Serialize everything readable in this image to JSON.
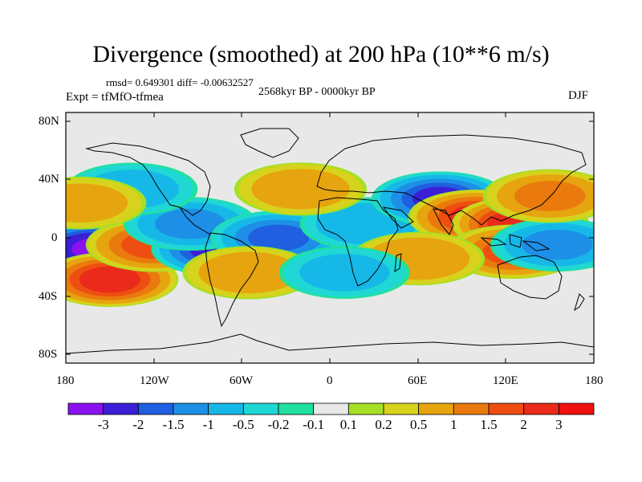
{
  "title": "Divergence (smoothed) at 200 hPa (10**6 m/s)",
  "stats_line": "rmsd= 0.649301 diff= -0.00632527",
  "experiment": "Expt = tfMfO-tfmea",
  "period": "2568kyr BP - 0000kyr BP",
  "season": "DJF",
  "lat_ticks": [
    "80N",
    "40N",
    "0",
    "40S",
    "80S"
  ],
  "lon_ticks": [
    "180",
    "120W",
    "60W",
    "0",
    "60E",
    "120E",
    "180"
  ],
  "colorbar": {
    "labels": [
      "-3",
      "-2",
      "-1.5",
      "-1",
      "-0.5",
      "-0.2",
      "-0.1",
      "0.1",
      "0.2",
      "0.5",
      "1",
      "1.5",
      "2",
      "3"
    ],
    "colors": [
      "#8a12f0",
      "#3a1fd6",
      "#1f5fe0",
      "#1e8fe6",
      "#16b8e8",
      "#1fd7d4",
      "#22e0a0",
      "#e8e8e8",
      "#a6e024",
      "#d7d21c",
      "#e6a40f",
      "#ea7a0d",
      "#ee4e12",
      "#ea2a1a",
      "#f01010"
    ]
  },
  "field": {
    "anomalies": [
      {
        "lon": -160,
        "lat": -8,
        "value": -3
      },
      {
        "lon": -150,
        "lat": -30,
        "value": 2.2
      },
      {
        "lon": -120,
        "lat": -5,
        "value": 1.6
      },
      {
        "lon": -75,
        "lat": -8,
        "value": -2.2
      },
      {
        "lon": -95,
        "lat": 10,
        "value": -1.0
      },
      {
        "lon": -35,
        "lat": 0,
        "value": -1.5
      },
      {
        "lon": -55,
        "lat": -25,
        "value": 0.8
      },
      {
        "lon": 25,
        "lat": 10,
        "value": -0.8
      },
      {
        "lon": 75,
        "lat": 28,
        "value": -2.0
      },
      {
        "lon": 100,
        "lat": 15,
        "value": 2.0
      },
      {
        "lon": 130,
        "lat": 10,
        "value": 2.4
      },
      {
        "lon": 125,
        "lat": -10,
        "value": 1.5
      },
      {
        "lon": 155,
        "lat": -5,
        "value": -1.0
      },
      {
        "lon": 150,
        "lat": 30,
        "value": 1.0
      },
      {
        "lon": 60,
        "lat": -15,
        "value": 0.9
      },
      {
        "lon": -20,
        "lat": 35,
        "value": 0.7
      },
      {
        "lon": -135,
        "lat": 35,
        "value": -0.6
      },
      {
        "lon": 10,
        "lat": -25,
        "value": -0.5
      },
      {
        "lon": -170,
        "lat": 25,
        "value": 0.6
      }
    ]
  }
}
